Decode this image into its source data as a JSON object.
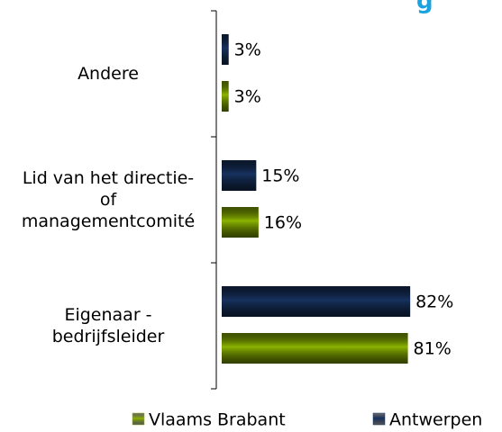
{
  "chart_data": {
    "type": "barh",
    "title": "g",
    "categories": [
      "Andere",
      "Lid van het directie-\nof\nmanagementcomité",
      "Eigenaar -\nbedrijfsleider"
    ],
    "series": [
      {
        "name": "Vlaams Brabant",
        "color": "#8cb400",
        "values": [
          3,
          16,
          81
        ],
        "value_labels": [
          "3%",
          "16%",
          "81%"
        ]
      },
      {
        "name": "Antwerpen",
        "color": "#17325f",
        "values": [
          3,
          15,
          82
        ],
        "value_labels": [
          "3%",
          "15%",
          "82%"
        ]
      }
    ],
    "legend": "bottom"
  }
}
